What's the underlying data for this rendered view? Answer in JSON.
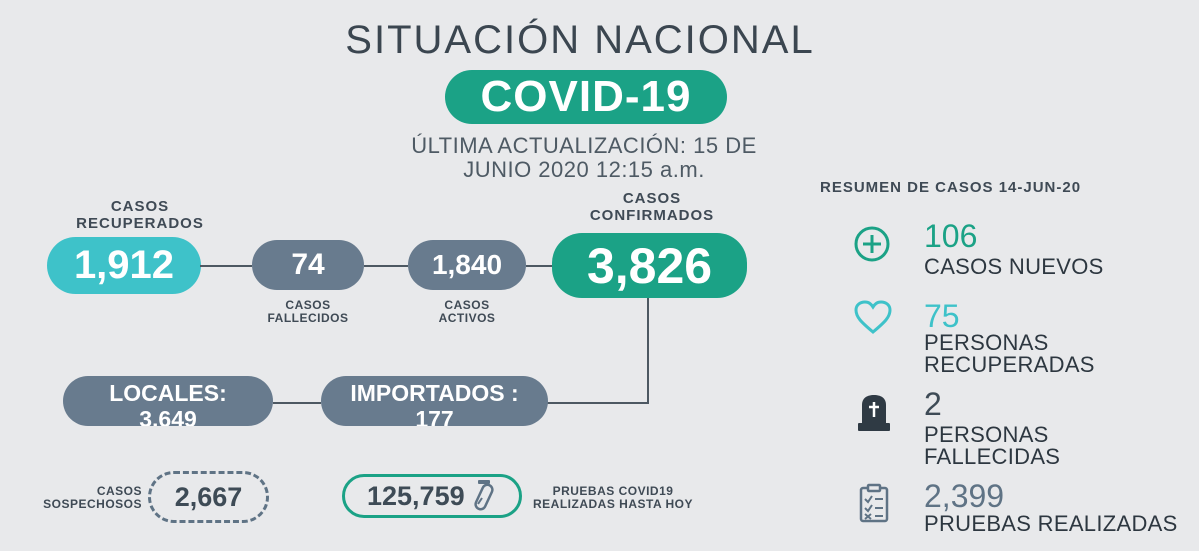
{
  "header": {
    "title": "SITUACIÓN NACIONAL",
    "badge": "COVID-19",
    "update": "ÚLTIMA ACTUALIZACIÓN: 15 DE JUNIO 2020 12:15 a.m."
  },
  "flow": {
    "recuperados": {
      "label": "CASOS RECUPERADOS",
      "value": "1,912"
    },
    "fallecidos": {
      "label": "CASOS FALLECIDOS",
      "value": "74"
    },
    "activos": {
      "label": "CASOS ACTIVOS",
      "value": "1,840"
    },
    "confirmados": {
      "label": "CASOS CONFIRMADOS",
      "value": "3,826"
    },
    "locales": {
      "text": "LOCALES: 3,649"
    },
    "importados": {
      "text": "IMPORTADOS : 177"
    }
  },
  "bottom": {
    "sospechosos": {
      "label": "CASOS SOSPECHOSOS",
      "value": "2,667"
    },
    "pruebas": {
      "label": "PRUEBAS COVID19 REALIZADAS HASTA HOY",
      "value": "125,759"
    }
  },
  "summary": {
    "title": "RESUMEN DE CASOS 14-JUN-20",
    "items": [
      {
        "value": "106",
        "label": "CASOS NUEVOS",
        "icon": "plus-circle-icon",
        "color": "#1ba286"
      },
      {
        "value": "75",
        "label": "PERSONAS RECUPERADAS",
        "icon": "heart-icon",
        "color": "#3ec2c9"
      },
      {
        "value": "2",
        "label": "PERSONAS FALLECIDAS",
        "icon": "tombstone-icon",
        "color": "#3e4b56"
      },
      {
        "value": "2,399",
        "label": "PRUEBAS REALIZADAS",
        "icon": "clipboard-checklist-icon",
        "color": "#5f7385"
      }
    ]
  },
  "colors": {
    "teal": "#1ba286",
    "cyan": "#3ec2c9",
    "slate": "#687b8e",
    "background": "#e8e9eb"
  }
}
